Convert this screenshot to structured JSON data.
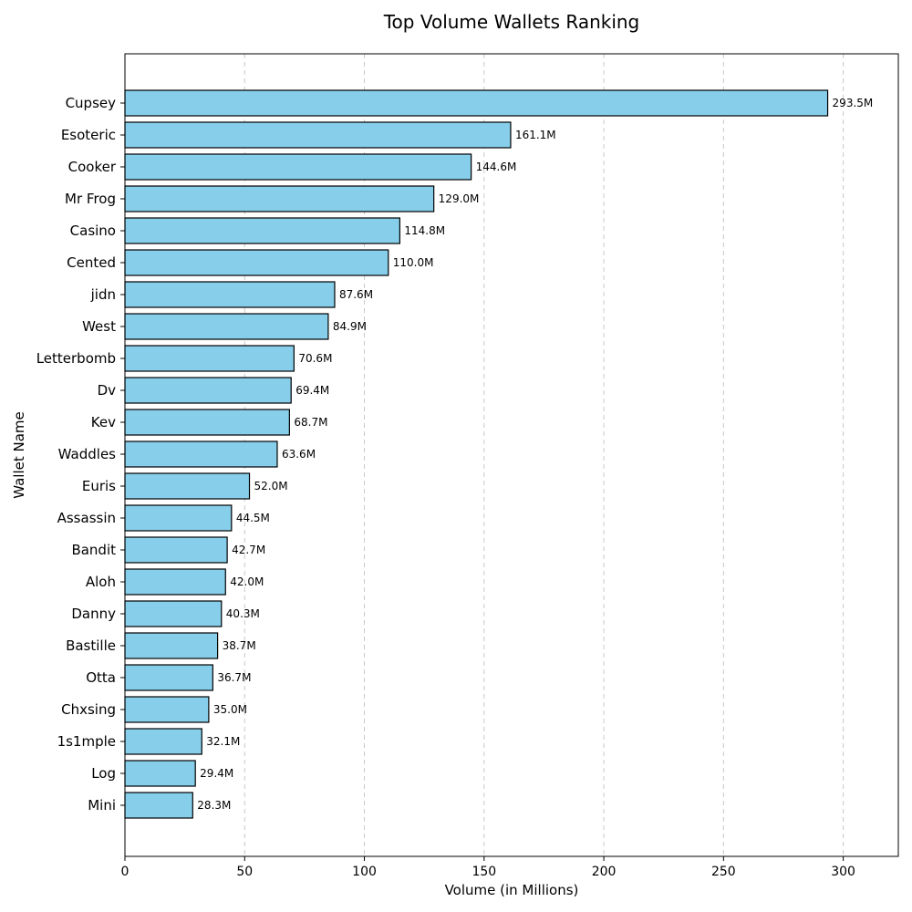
{
  "chart_data": {
    "type": "bar",
    "orientation": "horizontal",
    "title": "Top Volume Wallets Ranking",
    "xlabel": "Volume (in Millions)",
    "ylabel": "Wallet Name",
    "xlim": [
      0,
      323
    ],
    "xticks": [
      0,
      50,
      100,
      150,
      200,
      250,
      300
    ],
    "grid": "x-dashed",
    "bar_color": "#87CEEB",
    "edge_color": "#000000",
    "categories": [
      "Cupsey",
      "Esoteric",
      "Cooker",
      "Mr Frog",
      "Casino",
      "Cented",
      "jidn",
      "West",
      "Letterbomb",
      "Dv",
      "Kev",
      "Waddles",
      "Euris",
      "Assassin",
      "Bandit",
      "Aloh",
      "Danny",
      "Bastille",
      "Otta",
      "Chxsing",
      "1s1mple",
      "Log",
      "Mini"
    ],
    "values": [
      293.5,
      161.1,
      144.6,
      129.0,
      114.8,
      110.0,
      87.6,
      84.9,
      70.6,
      69.4,
      68.7,
      63.6,
      52.0,
      44.5,
      42.7,
      42.0,
      40.3,
      38.7,
      36.7,
      35.0,
      32.1,
      29.4,
      28.3
    ],
    "value_labels": [
      "293.5M",
      "161.1M",
      "144.6M",
      "129.0M",
      "114.8M",
      "110.0M",
      "87.6M",
      "84.9M",
      "70.6M",
      "69.4M",
      "68.7M",
      "63.6M",
      "52.0M",
      "44.5M",
      "42.7M",
      "42.0M",
      "40.3M",
      "38.7M",
      "36.7M",
      "35.0M",
      "32.1M",
      "29.4M",
      "28.3M"
    ]
  }
}
